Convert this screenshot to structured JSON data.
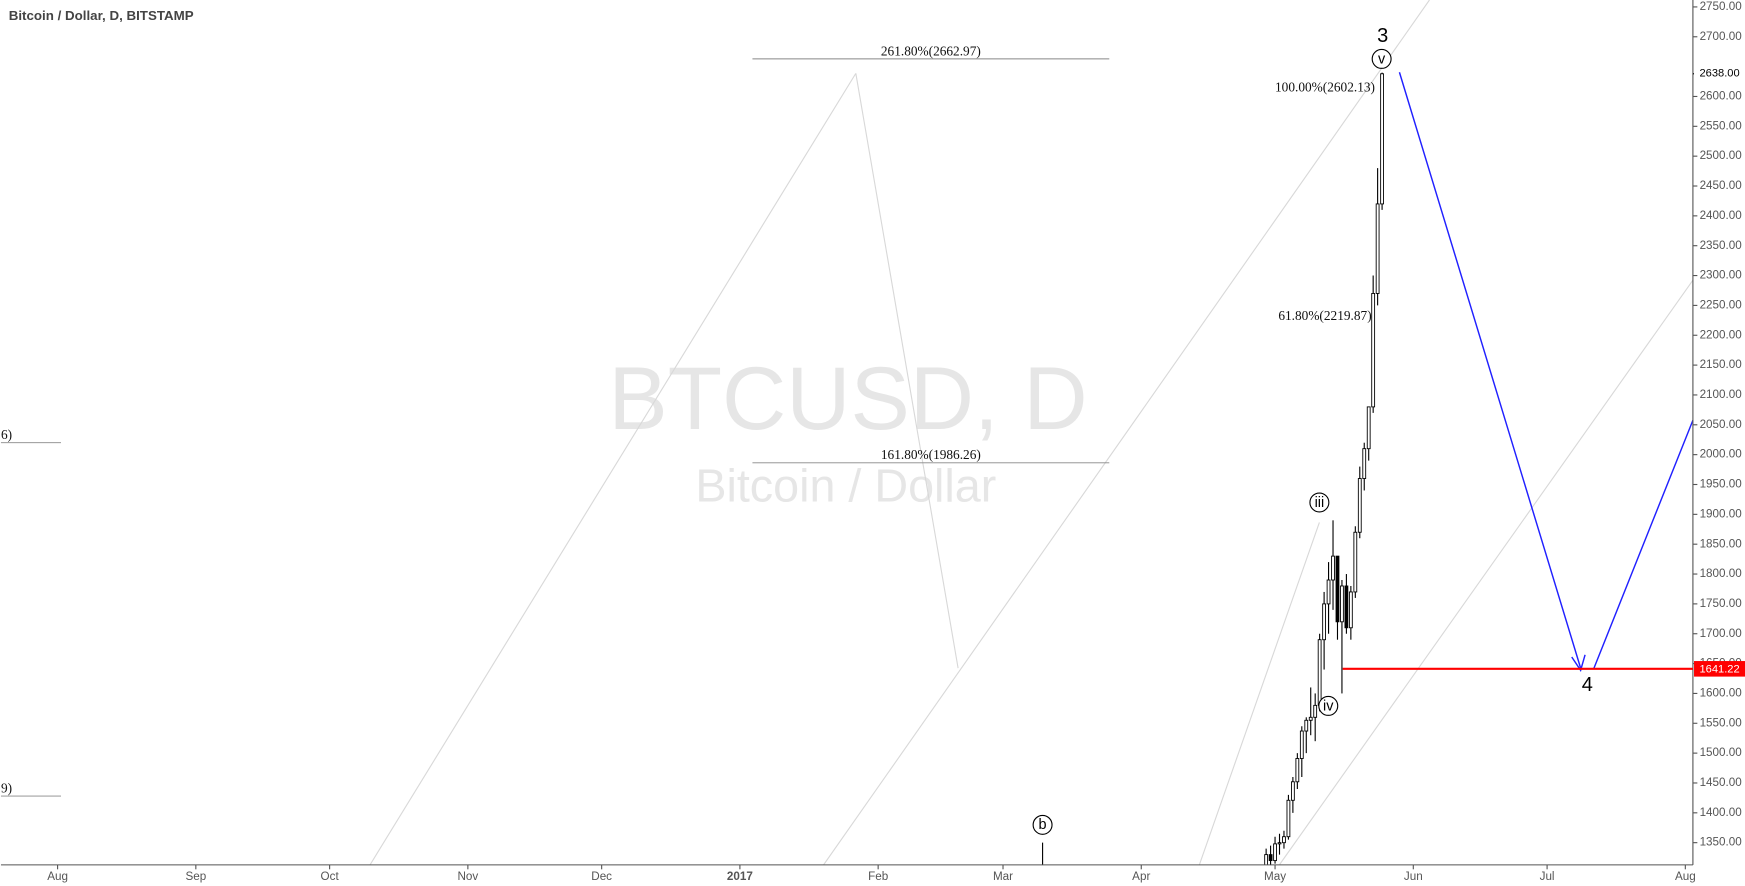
{
  "chart_data": {
    "type": "candlestick",
    "title": "Bitcoin / Dollar, D, BITSTAMP",
    "watermark": "BTCUSD, D",
    "subtitle": "Bitcoin / Dollar",
    "x": [
      271,
      272,
      273,
      274,
      275,
      276,
      277,
      278,
      279,
      280,
      281,
      282,
      283,
      284,
      285,
      286,
      287,
      288,
      289,
      290,
      291,
      292,
      293,
      294,
      295,
      296,
      297
    ],
    "open": [
      1300,
      1330,
      1320,
      1348,
      1350,
      1360,
      1421,
      1452,
      1491,
      1537,
      1555,
      1560,
      1580,
      1690,
      1750,
      1790,
      1830,
      1720,
      1780,
      1710,
      1770,
      1870,
      1960,
      2010,
      2080,
      2270,
      2420
    ],
    "high": [
      1340,
      1345,
      1360,
      1365,
      1370,
      1430,
      1460,
      1500,
      1545,
      1560,
      1610,
      1600,
      1700,
      1770,
      1820,
      1890,
      1830,
      1790,
      1800,
      1780,
      1880,
      1980,
      2020,
      2080,
      2300,
      2480,
      2640
    ],
    "low": [
      1290,
      1310,
      1315,
      1330,
      1340,
      1355,
      1400,
      1440,
      1460,
      1500,
      1530,
      1520,
      1570,
      1640,
      1700,
      1740,
      1690,
      1600,
      1700,
      1690,
      1760,
      1860,
      1940,
      1990,
      2070,
      2250,
      2410
    ],
    "close": [
      1330,
      1320,
      1348,
      1350,
      1360,
      1421,
      1452,
      1491,
      1537,
      1555,
      1560,
      1580,
      1690,
      1750,
      1790,
      1830,
      1720,
      1780,
      1710,
      1770,
      1870,
      1960,
      2010,
      2080,
      2270,
      2420,
      2638
    ],
    "xlim": [
      -12.7,
      366.7
    ],
    "xticks": [
      {
        "value": 0,
        "label": "Aug"
      },
      {
        "value": 31,
        "label": "Sep"
      },
      {
        "value": 61,
        "label": "Oct"
      },
      {
        "value": 92,
        "label": "Nov"
      },
      {
        "value": 122,
        "label": "Dec"
      },
      {
        "value": 153,
        "label": "2017"
      },
      {
        "value": 184,
        "label": "Feb"
      },
      {
        "value": 212,
        "label": "Mar"
      },
      {
        "value": 243,
        "label": "Apr"
      },
      {
        "value": 273,
        "label": "May"
      },
      {
        "value": 304,
        "label": "Jun"
      },
      {
        "value": 334,
        "label": "Jul"
      },
      {
        "value": 365,
        "label": "Aug"
      }
    ],
    "ylim": [
      1312.8,
      2761.6
    ],
    "yticks": [
      {
        "value": 1350,
        "label": "1350.00"
      },
      {
        "value": 1400,
        "label": "1400.00"
      },
      {
        "value": 1450,
        "label": "1450.00"
      },
      {
        "value": 1500,
        "label": "1500.00"
      },
      {
        "value": 1550,
        "label": "1550.00"
      },
      {
        "value": 1600,
        "label": "1600.00"
      },
      {
        "value": 1650,
        "label": "1650.00"
      },
      {
        "value": 1700,
        "label": "1700.00"
      },
      {
        "value": 1750,
        "label": "1750.00"
      },
      {
        "value": 1800,
        "label": "1800.00"
      },
      {
        "value": 1850,
        "label": "1850.00"
      },
      {
        "value": 1900,
        "label": "1900.00"
      },
      {
        "value": 1950,
        "label": "1950.00"
      },
      {
        "value": 2000,
        "label": "2000.00"
      },
      {
        "value": 2050,
        "label": "2050.00"
      },
      {
        "value": 2100,
        "label": "2100.00"
      },
      {
        "value": 2150,
        "label": "2150.00"
      },
      {
        "value": 2200,
        "label": "2200.00"
      },
      {
        "value": 2250,
        "label": "2250.00"
      },
      {
        "value": 2300,
        "label": "2300.00"
      },
      {
        "value": 2350,
        "label": "2350.00"
      },
      {
        "value": 2400,
        "label": "2400.00"
      },
      {
        "value": 2450,
        "label": "2450.00"
      },
      {
        "value": 2500,
        "label": "2500.00"
      },
      {
        "value": 2550,
        "label": "2550.00"
      },
      {
        "value": 2600,
        "label": "2600.00"
      },
      {
        "value": 2700,
        "label": "2700.00"
      },
      {
        "value": 2750,
        "label": "2750.00"
      }
    ],
    "last_price": {
      "value": 2638,
      "label": "2638.00"
    },
    "level_line": 1641.22,
    "level_color": "#ff0000",
    "fib_levels": [
      {
        "value": 2662.97,
        "label": "261.80%(2662.97)"
      },
      {
        "value": 1986.26,
        "label": "161.80%(1986.26)"
      },
      {
        "value": 2602.13,
        "label": "100.00%(2602.13)"
      },
      {
        "value": 2219.87,
        "label": "61.80%(2219.87)"
      }
    ],
    "left_levels": [
      {
        "value": 2020,
        "label": "6)"
      },
      {
        "value": 1428,
        "label": "9)"
      }
    ],
    "wave_labels": [
      "3",
      "v",
      "iii",
      "iv",
      "b",
      "4"
    ]
  }
}
